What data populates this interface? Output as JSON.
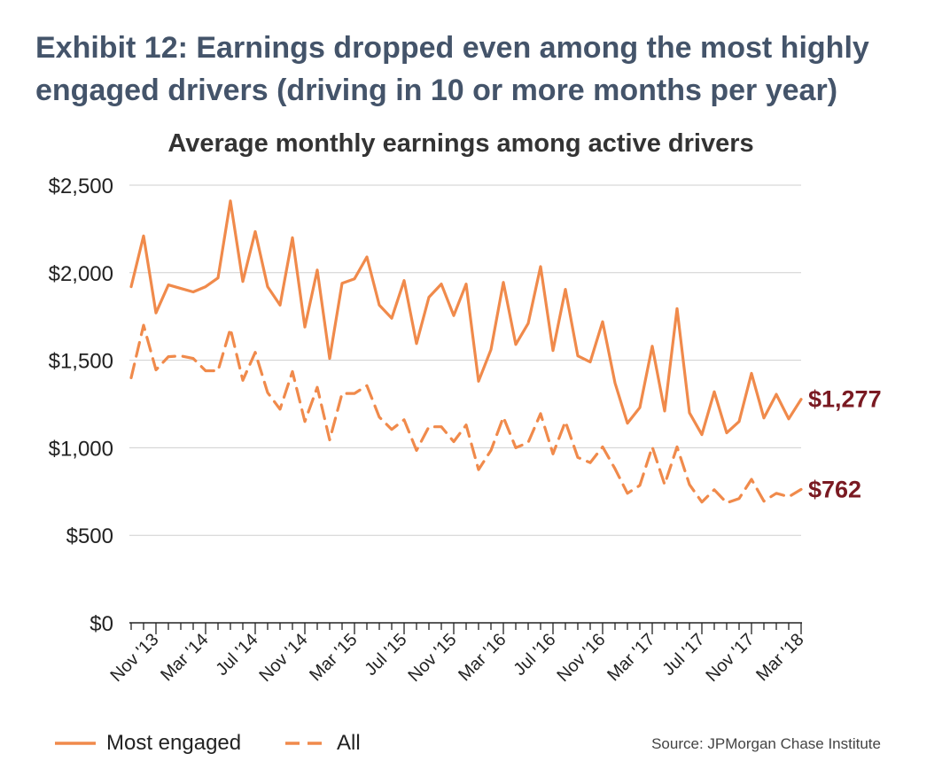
{
  "exhibit_title": "Exhibit 12: Earnings dropped even among the most highly engaged drivers (driving in 10 or more months per year)",
  "source": "Source: JPMorgan Chase Institute",
  "colors": {
    "line": "#f08a4b",
    "end_label": "#7a1a22",
    "axis": "#222222",
    "grid": "#cfcfcf"
  },
  "chart_data": {
    "type": "line",
    "title": "Average monthly earnings among active drivers",
    "xlabel": "",
    "ylabel": "",
    "ylim": [
      0,
      2500
    ],
    "yticks": [
      0,
      500,
      1000,
      1500,
      2000,
      2500
    ],
    "ytick_labels": [
      "$0",
      "$500",
      "$1,000",
      "$1,500",
      "$2,000",
      "$2,500"
    ],
    "x_start": "2013-09",
    "x_end": "2018-03",
    "xtick_labels": [
      "Nov '13",
      "Mar '14",
      "Jul '14",
      "Nov '14",
      "Mar '15",
      "Jul '15",
      "Nov '15",
      "Mar '16",
      "Jul '16",
      "Nov '16",
      "Mar '17",
      "Jul '17",
      "Nov '17",
      "Mar '18"
    ],
    "grid": true,
    "legend_position": "bottom-left",
    "series": [
      {
        "name": "Most engaged",
        "style": "solid",
        "end_label": "$1,277",
        "values": [
          1920,
          2210,
          1770,
          1930,
          1910,
          1890,
          1920,
          1970,
          2410,
          1950,
          2235,
          1920,
          1815,
          2200,
          1690,
          2015,
          1510,
          1940,
          1965,
          2090,
          1815,
          1740,
          1955,
          1595,
          1860,
          1935,
          1755,
          1935,
          1380,
          1560,
          1945,
          1590,
          1710,
          2035,
          1555,
          1905,
          1525,
          1490,
          1720,
          1370,
          1140,
          1230,
          1580,
          1210,
          1795,
          1200,
          1075,
          1320,
          1085,
          1150,
          1425,
          1170,
          1305,
          1165,
          1277
        ]
      },
      {
        "name": "All",
        "style": "dashed",
        "end_label": "$762",
        "values": [
          1400,
          1700,
          1445,
          1520,
          1525,
          1510,
          1440,
          1440,
          1680,
          1385,
          1545,
          1315,
          1220,
          1435,
          1150,
          1345,
          1045,
          1310,
          1310,
          1355,
          1175,
          1105,
          1160,
          985,
          1120,
          1120,
          1035,
          1130,
          875,
          985,
          1175,
          1000,
          1030,
          1195,
          965,
          1150,
          945,
          915,
          1005,
          880,
          740,
          785,
          1005,
          790,
          1005,
          790,
          690,
          760,
          685,
          710,
          820,
          695,
          740,
          720,
          762
        ]
      }
    ]
  }
}
